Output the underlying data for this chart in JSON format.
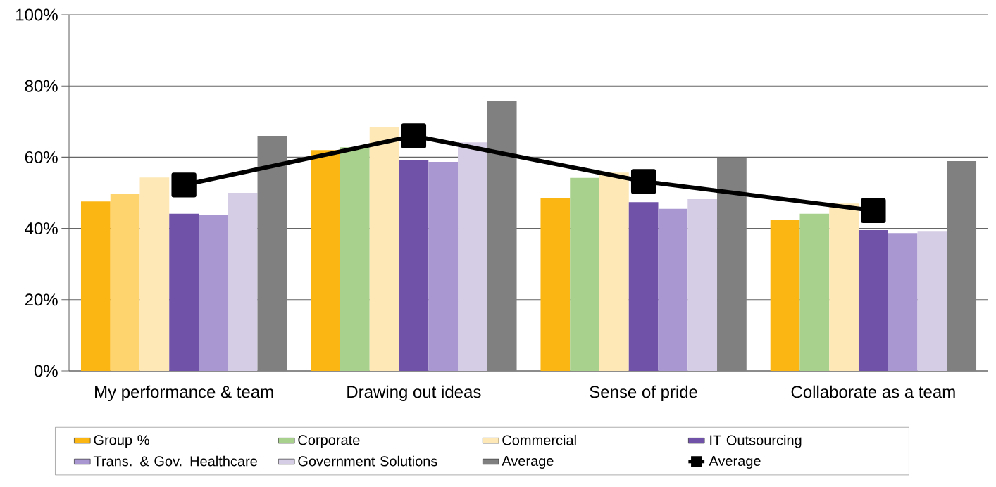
{
  "chart_data": {
    "type": "bar",
    "categories": [
      "My performance & team",
      "Drawing out ideas",
      "Sense of pride",
      "Collaborate as a team"
    ],
    "series": [
      {
        "name": "Group %",
        "color": "#fbb614",
        "values": [
          47.6,
          62,
          48.6,
          42.5
        ]
      },
      {
        "name": "Corporate",
        "color": "#a9d18e",
        "colors": [
          "#fed46e",
          "#a9d18e",
          "#a9d18e",
          "#a9d18e"
        ],
        "values": [
          49.8,
          62.8,
          54.2,
          44.1
        ]
      },
      {
        "name": "Commercial",
        "color": "#fee8b6",
        "values": [
          54.3,
          68.4,
          55.7,
          47
        ]
      },
      {
        "name": "IT Outsourcing",
        "color": "#7052a8",
        "values": [
          44.1,
          59.3,
          47.4,
          39.5
        ]
      },
      {
        "name": "Trans. & Gov. Healthcare",
        "color": "#a897d0",
        "values": [
          43.8,
          58.7,
          45.5,
          38.7
        ]
      },
      {
        "name": "Government Solutions",
        "color": "#d5cde5",
        "values": [
          50,
          64.2,
          48.2,
          39.3
        ]
      },
      {
        "name": "Average",
        "color": "#808080",
        "values": [
          66,
          75.9,
          59.9,
          58.9
        ]
      },
      {
        "name": "Average",
        "color": "#000000",
        "type": "line",
        "marker": "square",
        "values": [
          52.2,
          66,
          53.2,
          45
        ]
      }
    ],
    "ylim": [
      0,
      100
    ],
    "yticks": [
      {
        "value": 0,
        "label": "0%"
      },
      {
        "value": 20,
        "label": "20%"
      },
      {
        "value": 40,
        "label": "40%"
      },
      {
        "value": 60,
        "label": "60%"
      },
      {
        "value": 80,
        "label": "80%"
      },
      {
        "value": 100,
        "label": "100%"
      }
    ],
    "grid": "y",
    "legend": "bottom"
  }
}
